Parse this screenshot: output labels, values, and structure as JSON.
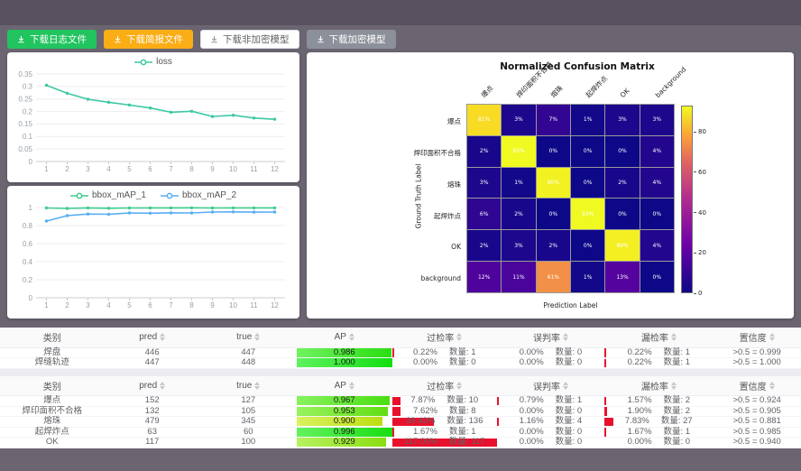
{
  "toolbar": {
    "buttons": [
      {
        "label": "下载日志文件",
        "variant": "green"
      },
      {
        "label": "下载简报文件",
        "variant": "orange"
      },
      {
        "label": "下载非加密模型",
        "variant": "white"
      },
      {
        "label": "下载加密模型",
        "variant": "gray"
      }
    ]
  },
  "chart_data": [
    {
      "id": "loss",
      "type": "line",
      "x": [
        1,
        2,
        3,
        4,
        5,
        6,
        7,
        8,
        9,
        10,
        11,
        12
      ],
      "yticks": [
        0,
        0.05,
        0.1,
        0.15,
        0.2,
        0.25,
        0.3,
        0.35
      ],
      "ylim": [
        0,
        0.35
      ],
      "grid": true,
      "legend_position": "top",
      "series": [
        {
          "name": "loss",
          "color": "#3cc8a4",
          "values": [
            0.305,
            0.273,
            0.249,
            0.237,
            0.226,
            0.214,
            0.197,
            0.201,
            0.18,
            0.185,
            0.174,
            0.169
          ]
        }
      ]
    },
    {
      "id": "bbox_map",
      "type": "line",
      "x": [
        1,
        2,
        3,
        4,
        5,
        6,
        7,
        8,
        9,
        10,
        11,
        12
      ],
      "yticks": [
        0,
        0.2,
        0.4,
        0.6,
        0.8,
        1
      ],
      "ylim": [
        0,
        1
      ],
      "grid": true,
      "legend_position": "top",
      "series": [
        {
          "name": "bbox_mAP_1",
          "color": "#3fcb8e",
          "values": [
            0.995,
            0.99,
            0.996,
            0.992,
            0.995,
            0.996,
            0.996,
            0.997,
            0.995,
            0.996,
            0.996,
            0.996
          ]
        },
        {
          "name": "bbox_mAP_2",
          "color": "#57aff1",
          "values": [
            0.85,
            0.91,
            0.928,
            0.925,
            0.94,
            0.937,
            0.941,
            0.94,
            0.95,
            0.952,
            0.949,
            0.95
          ]
        }
      ]
    },
    {
      "id": "confusion_matrix",
      "type": "heatmap",
      "title": "Normalized Confusion Matrix",
      "xlabel": "Prediction Label",
      "ylabel": "Ground Truth Label",
      "labels": [
        "爆点",
        "焊印面积不合格",
        "熔珠",
        "起焊炸点",
        "OK",
        "background"
      ],
      "unit": "%",
      "vmax": 93,
      "colormap": "plasma",
      "colorbar_ticks": [
        0,
        20,
        40,
        60,
        80
      ],
      "matrix": [
        [
          81,
          3,
          7,
          1,
          3,
          3
        ],
        [
          2,
          93,
          0,
          0,
          0,
          4
        ],
        [
          3,
          1,
          90,
          0,
          2,
          4
        ],
        [
          6,
          2,
          0,
          93,
          0,
          0
        ],
        [
          2,
          3,
          2,
          0,
          89,
          4
        ],
        [
          12,
          11,
          61,
          1,
          13,
          0
        ]
      ]
    }
  ],
  "tables": {
    "qty_label": "数量:",
    "headers": [
      {
        "label": "类别",
        "sortable": false
      },
      {
        "label": "pred",
        "sortable": true
      },
      {
        "label": "true",
        "sortable": true
      },
      {
        "label": "AP",
        "sortable": true
      },
      {
        "label": "过检率",
        "sortable": true
      },
      {
        "label": "误判率",
        "sortable": true
      },
      {
        "label": "漏检率",
        "sortable": true
      },
      {
        "label": "置信度",
        "sortable": true
      }
    ],
    "groups": [
      {
        "rows": [
          {
            "label": "焊盘",
            "pred": 446,
            "true": 447,
            "ap": "0.986",
            "over": {
              "pct": "0.22%",
              "qty": 1
            },
            "mis": {
              "pct": "0.00%",
              "qty": 0
            },
            "miss": {
              "pct": "0.22%",
              "qty": 1
            },
            "conf": ">0.5 = 0.999"
          },
          {
            "label": "焊缝轨迹",
            "pred": 447,
            "true": 448,
            "ap": "1.000",
            "over": {
              "pct": "0.00%",
              "qty": 0
            },
            "mis": {
              "pct": "0.00%",
              "qty": 0
            },
            "miss": {
              "pct": "0.22%",
              "qty": 1
            },
            "conf": ">0.5 = 1.000"
          }
        ]
      },
      {
        "rows": [
          {
            "label": "爆点",
            "pred": 152,
            "true": 127,
            "ap": "0.967",
            "over": {
              "pct": "7.87%",
              "qty": 10
            },
            "mis": {
              "pct": "0.79%",
              "qty": 1
            },
            "miss": {
              "pct": "1.57%",
              "qty": 2
            },
            "conf": ">0.5 = 0.924"
          },
          {
            "label": "焊印面积不合格",
            "pred": 132,
            "true": 105,
            "ap": "0.953",
            "over": {
              "pct": "7.62%",
              "qty": 8
            },
            "mis": {
              "pct": "0.00%",
              "qty": 0
            },
            "miss": {
              "pct": "1.90%",
              "qty": 2
            },
            "conf": ">0.5 = 0.905"
          },
          {
            "label": "熔珠",
            "pred": 479,
            "true": 345,
            "ap": "0.900",
            "over": {
              "pct": "39.42%",
              "qty": 136
            },
            "mis": {
              "pct": "1.16%",
              "qty": 4
            },
            "miss": {
              "pct": "7.83%",
              "qty": 27
            },
            "conf": ">0.5 = 0.881"
          },
          {
            "label": "起焊炸点",
            "pred": 63,
            "true": 60,
            "ap": "0.996",
            "over": {
              "pct": "1.67%",
              "qty": 1
            },
            "mis": {
              "pct": "0.00%",
              "qty": 0
            },
            "miss": {
              "pct": "1.67%",
              "qty": 1
            },
            "conf": ">0.5 = 0.985"
          },
          {
            "label": "OK",
            "pred": 117,
            "true": 100,
            "ap": "0.929",
            "over": {
              "pct": "117.00%",
              "qty": 117
            },
            "mis": {
              "pct": "0.00%",
              "qty": 0
            },
            "miss": {
              "pct": "0.00%",
              "qty": 0
            },
            "conf": ">0.5 = 0.940"
          }
        ]
      }
    ]
  },
  "colors": {
    "accent_green": "#21c45f",
    "accent_orange": "#faad14",
    "rate_bar_red": "#e8112d",
    "page_bg": "#6b6572"
  }
}
